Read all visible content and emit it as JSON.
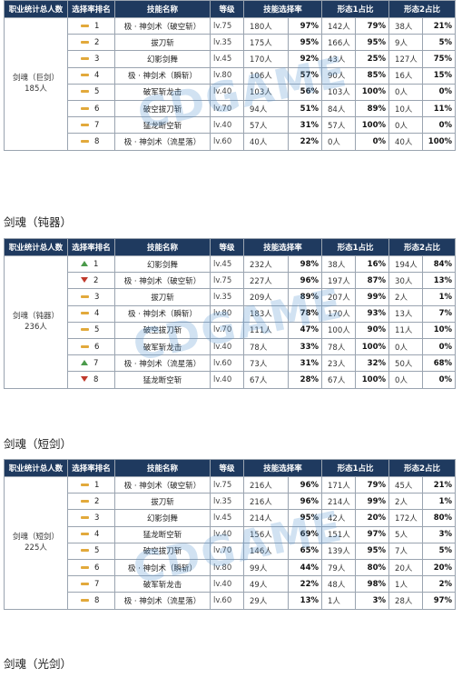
{
  "headers": {
    "total": "职业统计总人数",
    "rank": "选择率排名",
    "skill": "技能名称",
    "level": "等级",
    "skill_rate": "技能选择率",
    "form1": "形态1占比",
    "form2": "形态2占比"
  },
  "sections": [
    {
      "title": "",
      "total": "剑魂（巨剑）\n185人",
      "rows": [
        {
          "trend": "same",
          "rank": "1",
          "skill": "极 · 神剑术（破空斩）",
          "level": "lv.75",
          "count": "180人",
          "rate": "97%",
          "f1n": "142人",
          "f1p": "79%",
          "f2n": "38人",
          "f2p": "21%"
        },
        {
          "trend": "same",
          "rank": "2",
          "skill": "拔刀斩",
          "level": "lv.35",
          "count": "175人",
          "rate": "95%",
          "f1n": "166人",
          "f1p": "95%",
          "f2n": "9人",
          "f2p": "5%"
        },
        {
          "trend": "same",
          "rank": "3",
          "skill": "幻影剑舞",
          "level": "lv.45",
          "count": "170人",
          "rate": "92%",
          "f1n": "43人",
          "f1p": "25%",
          "f2n": "127人",
          "f2p": "75%"
        },
        {
          "trend": "same",
          "rank": "4",
          "skill": "极 · 神剑术（瞬斩）",
          "level": "lv.80",
          "count": "106人",
          "rate": "57%",
          "f1n": "90人",
          "f1p": "85%",
          "f2n": "16人",
          "f2p": "15%"
        },
        {
          "trend": "same",
          "rank": "5",
          "skill": "破军斩龙击",
          "level": "lv.40",
          "count": "103人",
          "rate": "56%",
          "f1n": "103人",
          "f1p": "100%",
          "f2n": "0人",
          "f2p": "0%"
        },
        {
          "trend": "same",
          "rank": "6",
          "skill": "破空拔刀斩",
          "level": "lv.70",
          "count": "94人",
          "rate": "51%",
          "f1n": "84人",
          "f1p": "89%",
          "f2n": "10人",
          "f2p": "11%"
        },
        {
          "trend": "same",
          "rank": "7",
          "skill": "猛龙断空斩",
          "level": "lv.40",
          "count": "57人",
          "rate": "31%",
          "f1n": "57人",
          "f1p": "100%",
          "f2n": "0人",
          "f2p": "0%"
        },
        {
          "trend": "same",
          "rank": "8",
          "skill": "极 · 神剑术（流星落）",
          "level": "lv.60",
          "count": "40人",
          "rate": "22%",
          "f1n": "0人",
          "f1p": "0%",
          "f2n": "40人",
          "f2p": "100%"
        }
      ]
    },
    {
      "title": "剑魂（钝器）",
      "total": "剑魂（钝器）\n236人",
      "rows": [
        {
          "trend": "up",
          "rank": "1",
          "skill": "幻影剑舞",
          "level": "lv.45",
          "count": "232人",
          "rate": "98%",
          "f1n": "38人",
          "f1p": "16%",
          "f2n": "194人",
          "f2p": "84%"
        },
        {
          "trend": "down",
          "rank": "2",
          "skill": "极 · 神剑术（破空斩）",
          "level": "lv.75",
          "count": "227人",
          "rate": "96%",
          "f1n": "197人",
          "f1p": "87%",
          "f2n": "30人",
          "f2p": "13%"
        },
        {
          "trend": "same",
          "rank": "3",
          "skill": "拔刀斩",
          "level": "lv.35",
          "count": "209人",
          "rate": "89%",
          "f1n": "207人",
          "f1p": "99%",
          "f2n": "2人",
          "f2p": "1%"
        },
        {
          "trend": "same",
          "rank": "4",
          "skill": "极 · 神剑术（瞬斩）",
          "level": "lv.80",
          "count": "183人",
          "rate": "78%",
          "f1n": "170人",
          "f1p": "93%",
          "f2n": "13人",
          "f2p": "7%"
        },
        {
          "trend": "same",
          "rank": "5",
          "skill": "破空拔刀斩",
          "level": "lv.70",
          "count": "111人",
          "rate": "47%",
          "f1n": "100人",
          "f1p": "90%",
          "f2n": "11人",
          "f2p": "10%"
        },
        {
          "trend": "same",
          "rank": "6",
          "skill": "破军斩龙击",
          "level": "lv.40",
          "count": "78人",
          "rate": "33%",
          "f1n": "78人",
          "f1p": "100%",
          "f2n": "0人",
          "f2p": "0%"
        },
        {
          "trend": "up",
          "rank": "7",
          "skill": "极 · 神剑术（流星落）",
          "level": "lv.60",
          "count": "73人",
          "rate": "31%",
          "f1n": "23人",
          "f1p": "32%",
          "f2n": "50人",
          "f2p": "68%"
        },
        {
          "trend": "down",
          "rank": "8",
          "skill": "猛龙断空斩",
          "level": "lv.40",
          "count": "67人",
          "rate": "28%",
          "f1n": "67人",
          "f1p": "100%",
          "f2n": "0人",
          "f2p": "0%"
        }
      ]
    },
    {
      "title": "剑魂（短剑）",
      "total": "剑魂（短剑）\n225人",
      "rows": [
        {
          "trend": "same",
          "rank": "1",
          "skill": "极 · 神剑术（破空斩）",
          "level": "lv.75",
          "count": "216人",
          "rate": "96%",
          "f1n": "171人",
          "f1p": "79%",
          "f2n": "45人",
          "f2p": "21%"
        },
        {
          "trend": "same",
          "rank": "2",
          "skill": "拔刀斩",
          "level": "lv.35",
          "count": "216人",
          "rate": "96%",
          "f1n": "214人",
          "f1p": "99%",
          "f2n": "2人",
          "f2p": "1%"
        },
        {
          "trend": "same",
          "rank": "3",
          "skill": "幻影剑舞",
          "level": "lv.45",
          "count": "214人",
          "rate": "95%",
          "f1n": "42人",
          "f1p": "20%",
          "f2n": "172人",
          "f2p": "80%"
        },
        {
          "trend": "same",
          "rank": "4",
          "skill": "猛龙断空斩",
          "level": "lv.40",
          "count": "156人",
          "rate": "69%",
          "f1n": "151人",
          "f1p": "97%",
          "f2n": "5人",
          "f2p": "3%"
        },
        {
          "trend": "same",
          "rank": "5",
          "skill": "破空拔刀斩",
          "level": "lv.70",
          "count": "146人",
          "rate": "65%",
          "f1n": "139人",
          "f1p": "95%",
          "f2n": "7人",
          "f2p": "5%"
        },
        {
          "trend": "same",
          "rank": "6",
          "skill": "极 · 神剑术（瞬斩）",
          "level": "lv.80",
          "count": "99人",
          "rate": "44%",
          "f1n": "79人",
          "f1p": "80%",
          "f2n": "20人",
          "f2p": "20%"
        },
        {
          "trend": "same",
          "rank": "7",
          "skill": "破军斩龙击",
          "level": "lv.40",
          "count": "49人",
          "rate": "22%",
          "f1n": "48人",
          "f1p": "98%",
          "f2n": "1人",
          "f2p": "2%"
        },
        {
          "trend": "same",
          "rank": "8",
          "skill": "极 · 神剑术（流星落）",
          "level": "lv.60",
          "count": "29人",
          "rate": "13%",
          "f1n": "1人",
          "f1p": "3%",
          "f2n": "28人",
          "f2p": "97%"
        }
      ]
    }
  ],
  "footer_heading": "剑魂（光剑）",
  "watermark": "CDGAME",
  "colors": {
    "header_bg": "#1f3a5f",
    "same": "#e2a93b",
    "up": "#4a9a4a",
    "down": "#c0392b"
  },
  "trend_icons": {
    "same": "dash-icon",
    "up": "up-arrow-icon",
    "down": "down-arrow-icon"
  }
}
